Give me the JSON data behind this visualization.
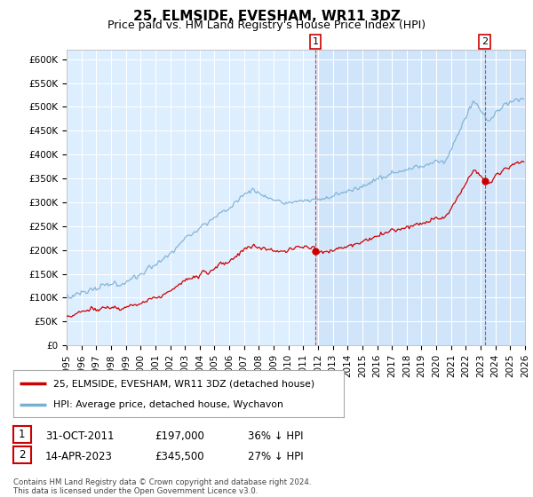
{
  "title": "25, ELMSIDE, EVESHAM, WR11 3DZ",
  "subtitle": "Price paid vs. HM Land Registry's House Price Index (HPI)",
  "ylabel_ticks": [
    "£0",
    "£50K",
    "£100K",
    "£150K",
    "£200K",
    "£250K",
    "£300K",
    "£350K",
    "£400K",
    "£450K",
    "£500K",
    "£550K",
    "£600K"
  ],
  "ytick_values": [
    0,
    50000,
    100000,
    150000,
    200000,
    250000,
    300000,
    350000,
    400000,
    450000,
    500000,
    550000,
    600000
  ],
  "ylim": [
    0,
    620000
  ],
  "xlim_start": 1995.0,
  "xlim_end": 2026.0,
  "hpi_color": "#7aafd4",
  "price_color": "#cc0000",
  "vline_color": "#cc0000",
  "background_color": "#ddeeff",
  "grid_color": "#ffffff",
  "fill_color": "#cce0f0",
  "marker1_year": 2011.83,
  "marker1_price": 197000,
  "marker1_label": "1",
  "marker2_year": 2023.28,
  "marker2_price": 345500,
  "marker2_label": "2",
  "legend_house_label": "25, ELMSIDE, EVESHAM, WR11 3DZ (detached house)",
  "legend_hpi_label": "HPI: Average price, detached house, Wychavon",
  "table_rows": [
    {
      "num": "1",
      "date": "31-OCT-2011",
      "price": "£197,000",
      "pct": "36% ↓ HPI"
    },
    {
      "num": "2",
      "date": "14-APR-2023",
      "price": "£345,500",
      "pct": "27% ↓ HPI"
    }
  ],
  "footnote": "Contains HM Land Registry data © Crown copyright and database right 2024.\nThis data is licensed under the Open Government Licence v3.0.",
  "title_fontsize": 11,
  "subtitle_fontsize": 9,
  "tick_fontsize": 7.5
}
